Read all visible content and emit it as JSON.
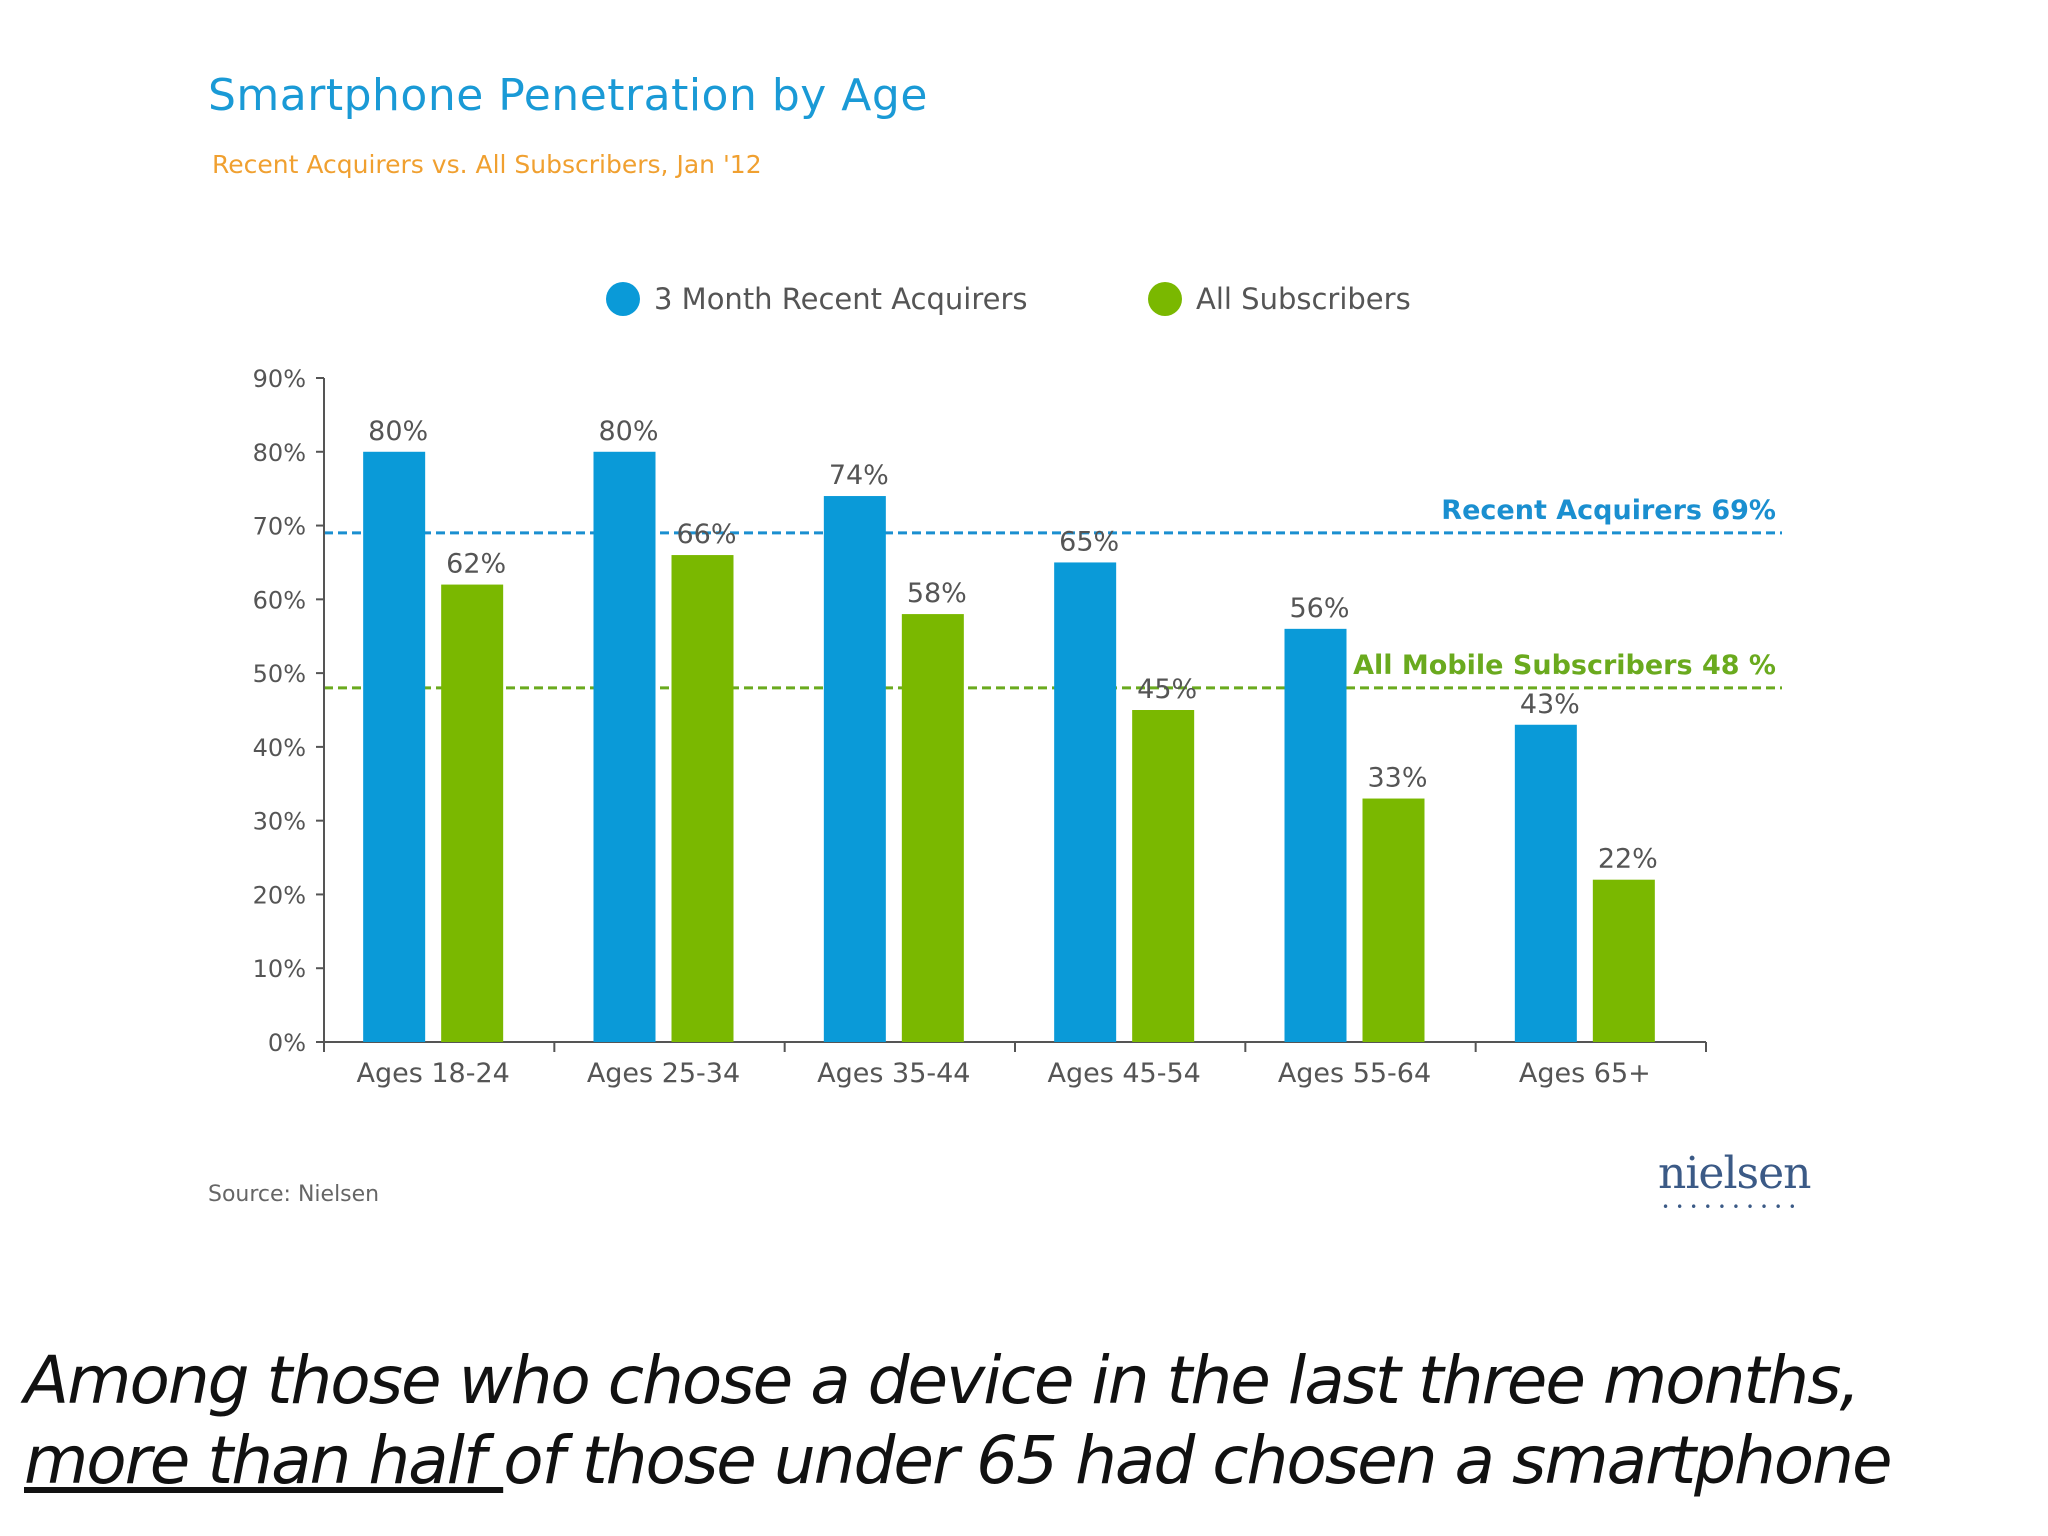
{
  "chart_data": {
    "type": "bar",
    "title": "Smartphone Penetration by Age",
    "subtitle": "Recent Acquirers vs. All Subscribers, Jan '12",
    "categories": [
      "Ages 18-24",
      "Ages 25-34",
      "Ages 35-44",
      "Ages 45-54",
      "Ages 55-64",
      "Ages 65+"
    ],
    "series": [
      {
        "name": "3 Month Recent Acquirers",
        "values": [
          80,
          80,
          74,
          65,
          56,
          43
        ],
        "labels": [
          "80%",
          "80%",
          "74%",
          "65%",
          "56%",
          "43%"
        ],
        "color": "#0a9ad8"
      },
      {
        "name": "All Subscribers",
        "values": [
          62,
          66,
          58,
          45,
          33,
          22
        ],
        "labels": [
          "62%",
          "66%",
          "58%",
          "45%",
          "33%",
          "22%"
        ],
        "color": "#7ab800"
      }
    ],
    "yticks": [
      "0%",
      "10%",
      "20%",
      "30%",
      "40%",
      "50%",
      "60%",
      "70%",
      "80%",
      "90%"
    ],
    "ylim": [
      0,
      90
    ],
    "reference_lines": [
      {
        "label": "Recent Acquirers 69%",
        "value": 69,
        "color": "#1a8fd0"
      },
      {
        "label": "All Mobile Subscribers 48 %",
        "value": 48,
        "color": "#6aaa1e"
      }
    ],
    "grid": false,
    "legend_position": "top"
  },
  "source": "Source: Nielsen",
  "logo": "nielsen",
  "caption": {
    "line1": "Among those who chose a device in the last three months,",
    "line2_underlined": "more than half ",
    "line2_rest": "of those under 65 had chosen a smartphone"
  }
}
